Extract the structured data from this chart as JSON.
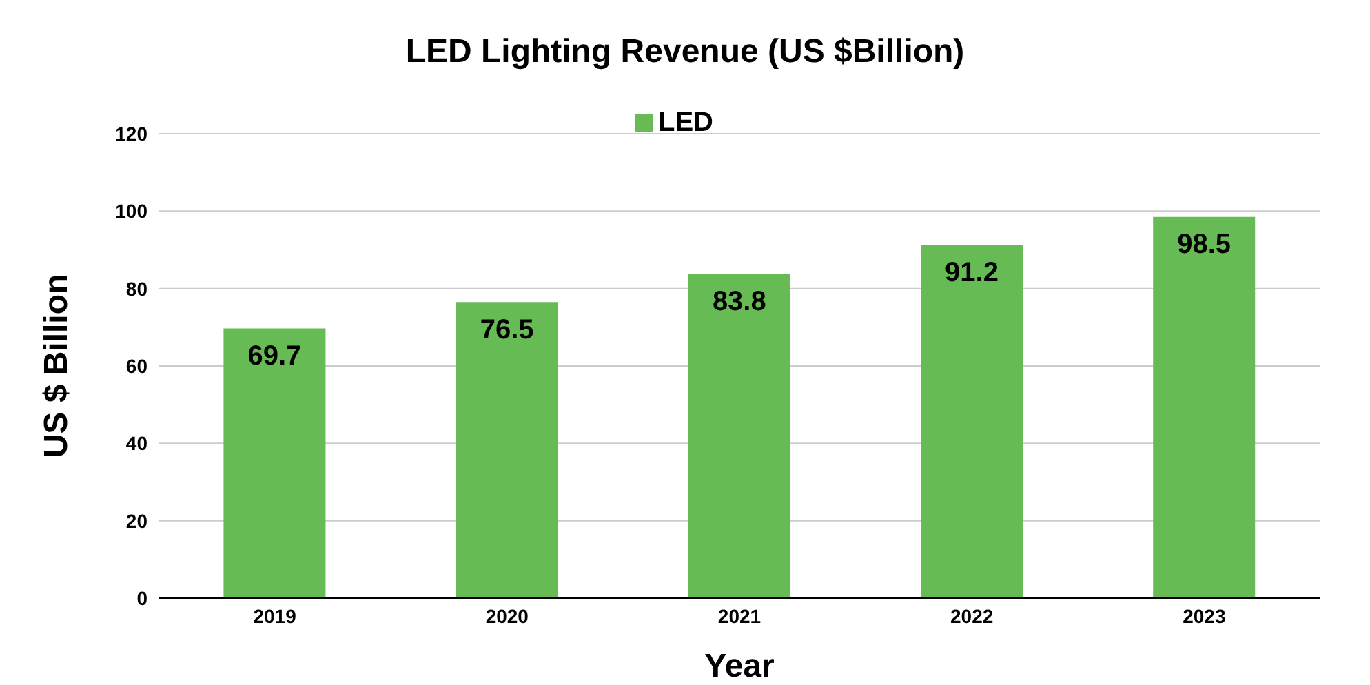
{
  "chart_data": {
    "type": "bar",
    "title": "LED Lighting Revenue (US $Billion)",
    "xlabel": "Year",
    "ylabel": "US $ Billion",
    "categories": [
      "2019",
      "2020",
      "2021",
      "2022",
      "2023"
    ],
    "series": [
      {
        "name": "LED",
        "color": "#66bb55",
        "values": [
          69.7,
          76.5,
          83.8,
          91.2,
          98.5
        ]
      }
    ],
    "ylim": [
      0,
      120
    ],
    "yticks": [
      0,
      20,
      40,
      60,
      80,
      100,
      120
    ],
    "grid": "y",
    "legend": "top",
    "data_labels": true
  }
}
